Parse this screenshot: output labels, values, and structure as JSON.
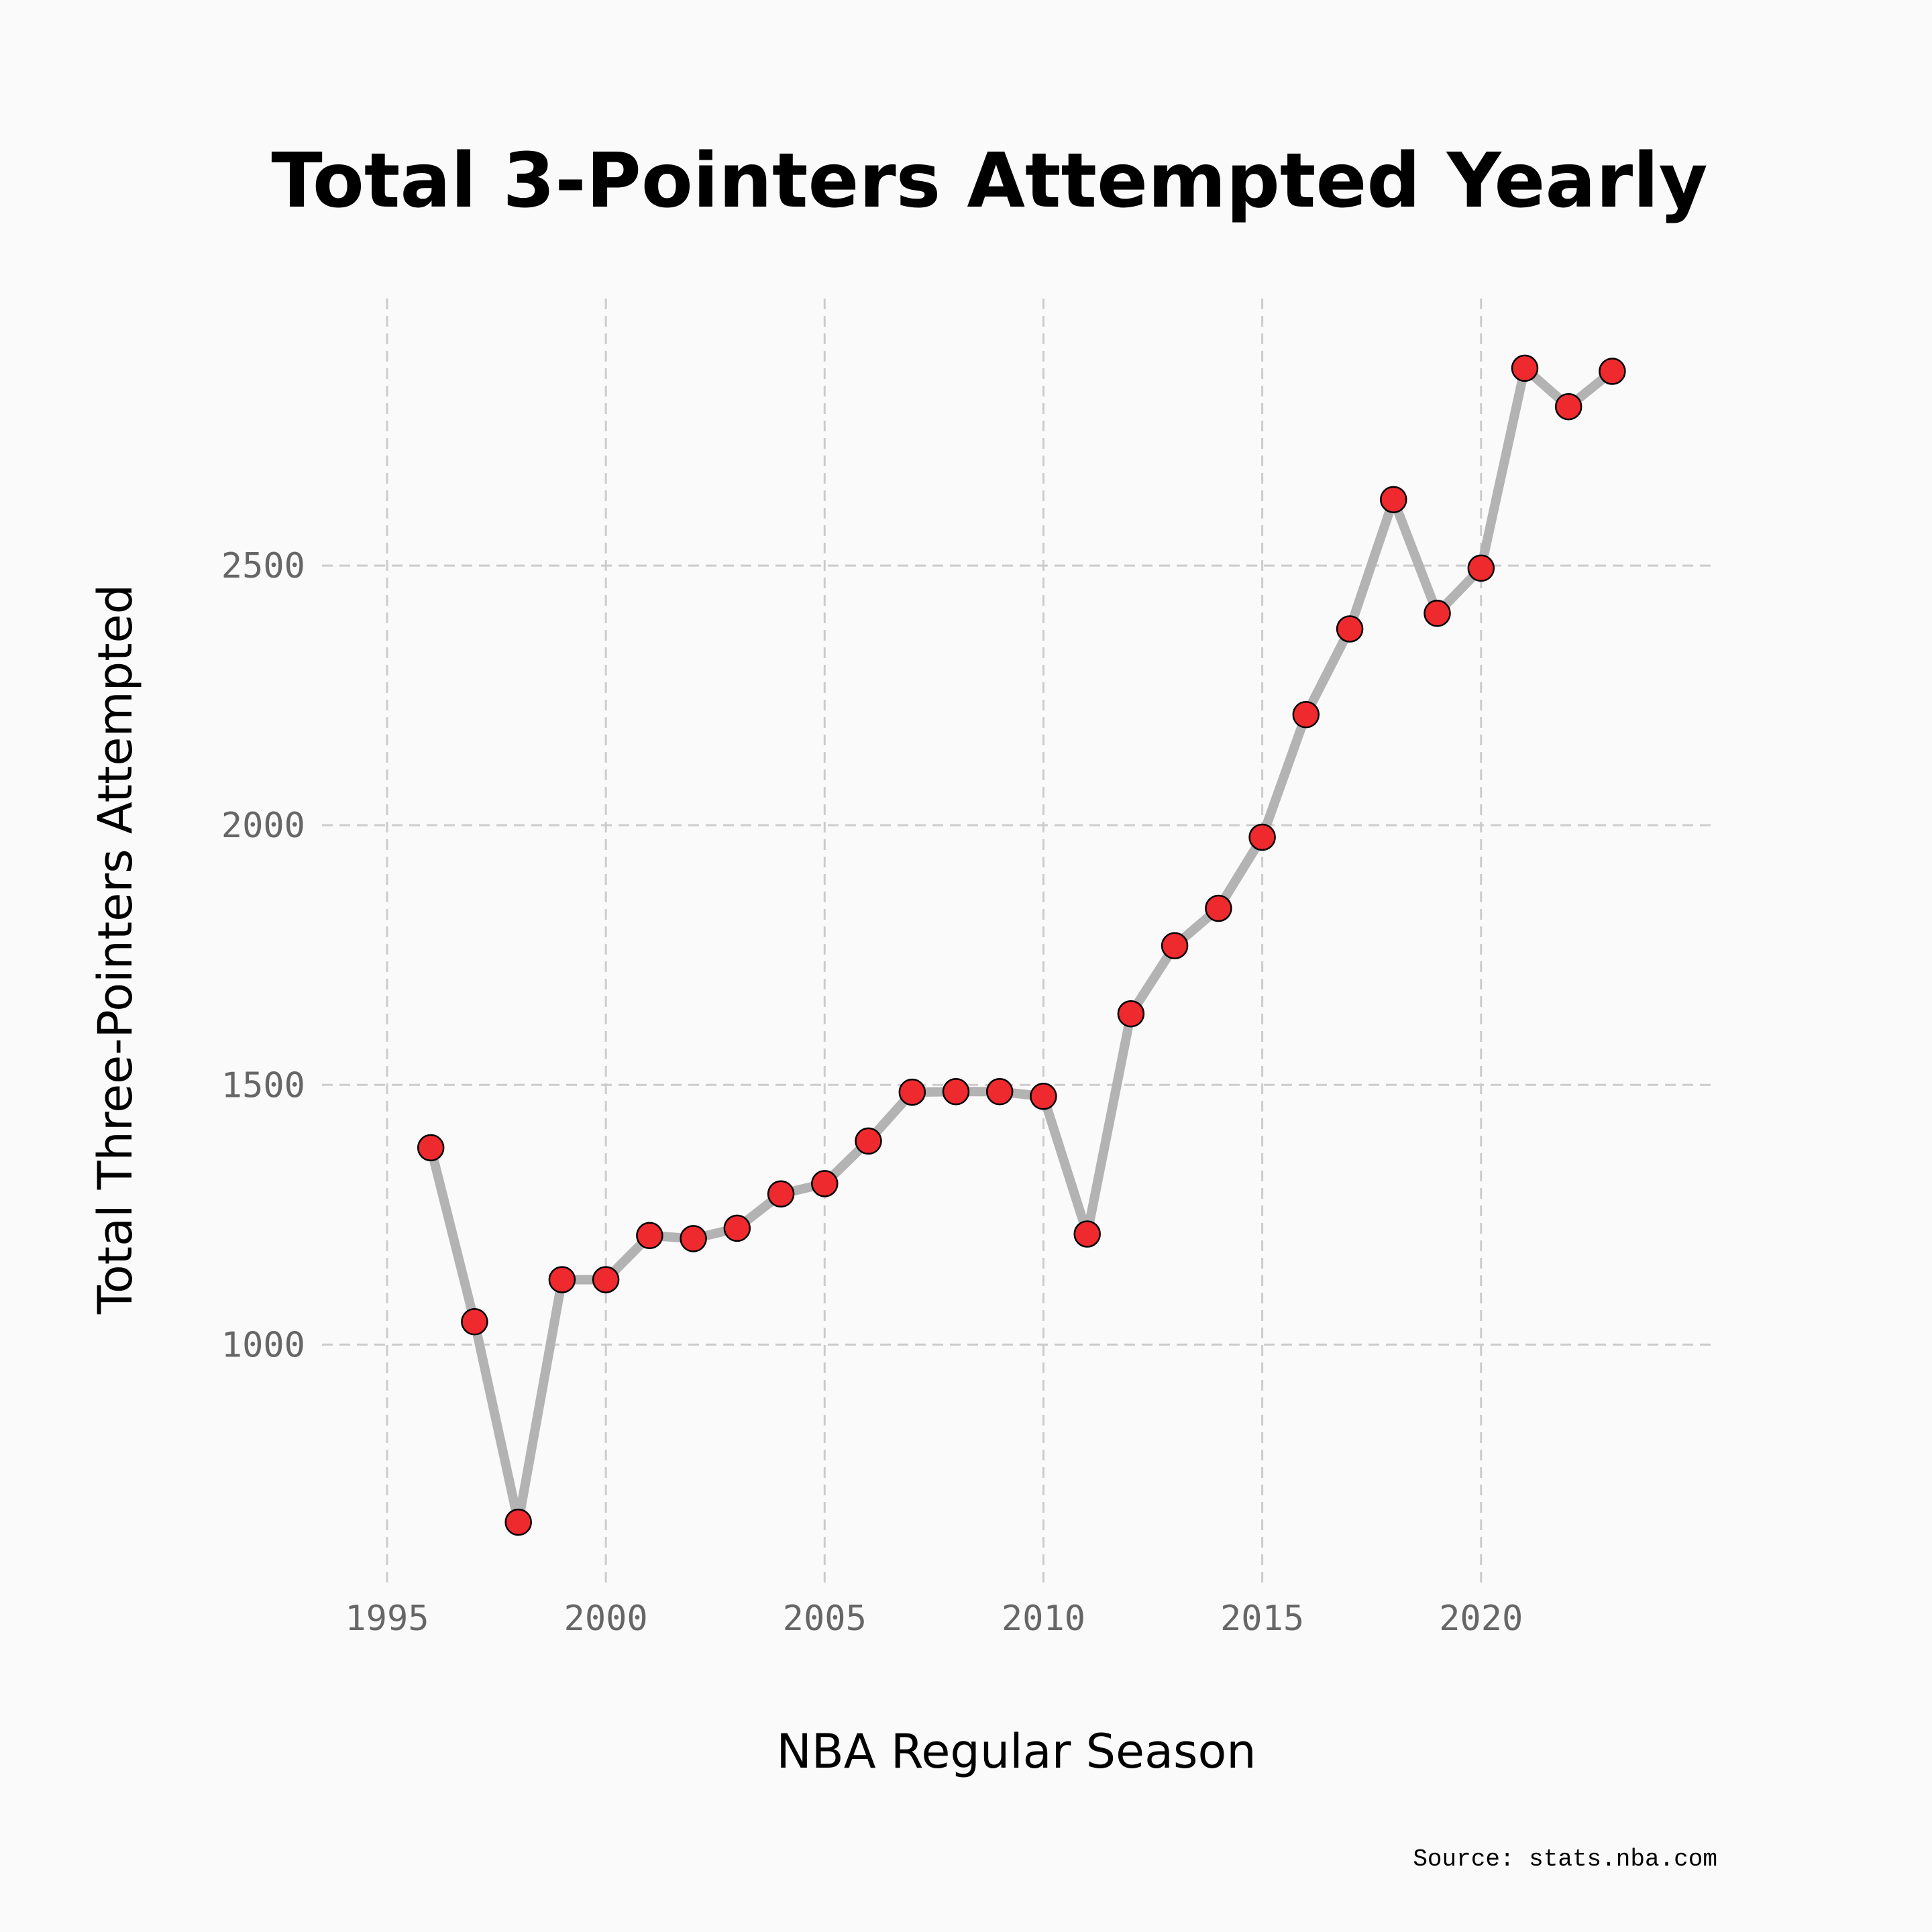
{
  "chart_data": {
    "type": "line",
    "title": "Total 3-Pointers Attempted Yearly",
    "xlabel": "NBA Regular Season",
    "ylabel": "Total Three-Pointers Attempted",
    "source": "Source: stats.nba.com",
    "x_ticks": [
      "1995",
      "2000",
      "2005",
      "2010",
      "2015",
      "2020"
    ],
    "y_ticks": [
      "1000",
      "1500",
      "2000",
      "2500"
    ],
    "xlim": [
      1992.9,
      2025.4
    ],
    "ylim": [
      560,
      3040
    ],
    "grid": true,
    "colors": {
      "line": "#b3b3b3",
      "marker": "#ee2a2e",
      "marker_edge": "#000000",
      "grid": "#cccccc",
      "background": "#fafafa"
    },
    "series": [
      {
        "x": [
          1996,
          1997,
          1998,
          1999,
          2000,
          2001,
          2002,
          2003,
          2004,
          2005,
          2006,
          2007,
          2008,
          2009,
          2010,
          2011,
          2012,
          2013,
          2014,
          2015,
          2016,
          2017,
          2018,
          2019,
          2020,
          2021,
          2022,
          2023
        ],
        "y": [
          1379,
          1044,
          658,
          1125,
          1125,
          1210,
          1204,
          1224,
          1290,
          1310,
          1392,
          1486,
          1487,
          1487,
          1478,
          1213,
          1637,
          1768,
          1840,
          1977,
          2213,
          2378,
          2627,
          2408,
          2495,
          2880,
          2806,
          2874
        ]
      }
    ]
  }
}
